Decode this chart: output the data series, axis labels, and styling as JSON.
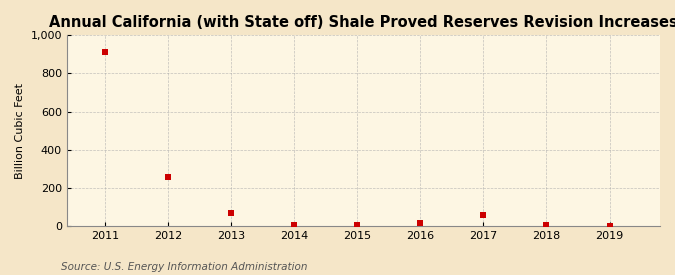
{
  "title": "Annual California (with State off) Shale Proved Reserves Revision Increases",
  "ylabel": "Billion Cubic Feet",
  "source": "Source: U.S. Energy Information Administration",
  "years": [
    2011,
    2012,
    2013,
    2014,
    2015,
    2016,
    2017,
    2018,
    2019
  ],
  "values": [
    910,
    255,
    70,
    5,
    3,
    15,
    55,
    4,
    1
  ],
  "ylim": [
    0,
    1000
  ],
  "yticks": [
    0,
    200,
    400,
    600,
    800,
    1000
  ],
  "ytick_labels": [
    "0",
    "200",
    "400",
    "600",
    "800",
    "1,000"
  ],
  "marker_color": "#cc0000",
  "marker_size": 4,
  "background_color": "#f5e6c8",
  "plot_bg_color": "#fdf6e3",
  "grid_color": "#aaaaaa",
  "title_fontsize": 10.5,
  "label_fontsize": 8,
  "tick_fontsize": 8,
  "source_fontsize": 7.5,
  "xlim_left": 2010.4,
  "xlim_right": 2019.8
}
